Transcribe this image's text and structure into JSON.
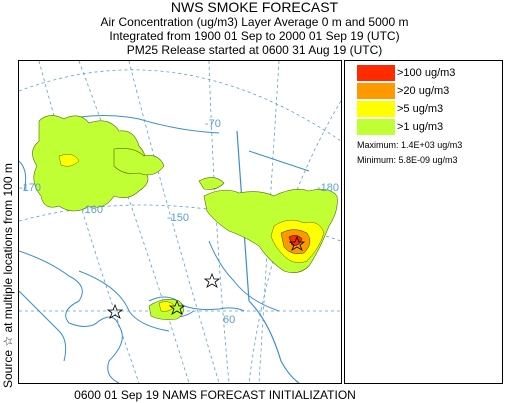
{
  "header": {
    "title": "NWS SMOKE FORECAST",
    "line1": "Air Concentration (ug/m3) Layer Average    0 m and  5000 m",
    "line2": "Integrated from 1900 01 Sep to 2000 01 Sep 19 (UTC)",
    "line3": "PM25 Release started at 0600 31 Aug 19 (UTC)"
  },
  "side_label": "Source ☆ at multiple locations   from   100 m",
  "footer": "0600 01 Sep 19 NAMS FORECAST INITIALIZATION",
  "map": {
    "graticule_labels": [
      "-70",
      "-150",
      "-160",
      "-170",
      "-180",
      "60"
    ],
    "colors": {
      "ocean_lines": "#5aa0d0",
      "land_outline": "#3a8fc8",
      "contour_dark": "#1a1a1a"
    }
  },
  "legend": {
    "items": [
      {
        "label": ">100 ug/m3",
        "color": "#ff2a00"
      },
      {
        "label": ">20 ug/m3",
        "color": "#ff9900"
      },
      {
        "label": ">5 ug/m3",
        "color": "#ffff00"
      },
      {
        "label": ">1 ug/m3",
        "color": "#bfff33"
      }
    ],
    "maximum": "Maximum: 1.4E+03 ug/m3",
    "minimum": "Minimum: 5.8E-09 ug/m3"
  }
}
